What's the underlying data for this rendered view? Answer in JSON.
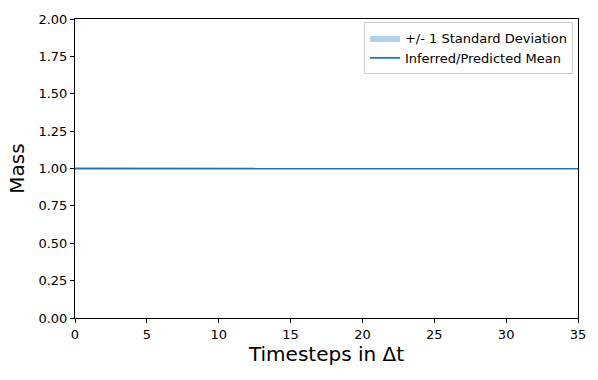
{
  "chart_data": {
    "type": "line",
    "x_label": "Timesteps in Δt",
    "y_label": "Mass",
    "x": [
      0,
      1,
      2,
      3,
      4,
      5,
      6,
      7,
      8,
      9,
      10,
      11,
      12,
      13,
      14,
      15,
      16,
      17,
      18,
      19,
      20,
      21,
      22,
      23,
      24,
      25,
      26,
      27,
      28,
      29,
      30,
      31,
      32,
      33,
      34,
      35
    ],
    "series": [
      {
        "name": "Inferred/Predicted Mean",
        "color": "#1f77b4",
        "type": "line",
        "values": [
          1.0,
          1.0,
          1.0,
          1.0,
          1.0,
          1.0,
          1.0,
          1.0,
          1.001,
          1.001,
          1.001,
          1.0,
          1.0,
          1.0,
          1.0,
          1.0,
          1.0,
          1.0,
          1.0,
          1.0,
          1.0,
          1.001,
          1.0,
          1.0,
          1.0,
          1.0,
          1.0,
          1.0,
          0.999,
          0.999,
          0.999,
          0.999,
          0.999,
          0.999,
          0.999,
          0.999
        ]
      },
      {
        "name": "+/- 1 Standard Deviation",
        "color": "#b3d1ea",
        "type": "band",
        "values": [
          0.003,
          0.003,
          0.003,
          0.003,
          0.003,
          0.003,
          0.003,
          0.003,
          0.003,
          0.003,
          0.003,
          0.003,
          0.003,
          0.003,
          0.003,
          0.003,
          0.003,
          0.003,
          0.003,
          0.003,
          0.003,
          0.003,
          0.003,
          0.003,
          0.003,
          0.003,
          0.003,
          0.003,
          0.003,
          0.003,
          0.003,
          0.003,
          0.003,
          0.003,
          0.003,
          0.003
        ]
      }
    ],
    "xlim": [
      0,
      35
    ],
    "xticks": [
      0,
      5,
      10,
      15,
      20,
      25,
      30,
      35
    ],
    "ylim": [
      0,
      2
    ],
    "yticks": [
      {
        "value": 0,
        "label": "0.00"
      },
      {
        "value": 0.25,
        "label": "0.25"
      },
      {
        "value": 0.5,
        "label": "0.50"
      },
      {
        "value": 0.75,
        "label": "0.75"
      },
      {
        "value": 1,
        "label": "1.00"
      },
      {
        "value": 1.25,
        "label": "1.25"
      },
      {
        "value": 1.5,
        "label": "1.50"
      },
      {
        "value": 1.75,
        "label": "1.75"
      },
      {
        "value": 2,
        "label": "2.00"
      }
    ],
    "grid": false,
    "legend": "upper right"
  }
}
